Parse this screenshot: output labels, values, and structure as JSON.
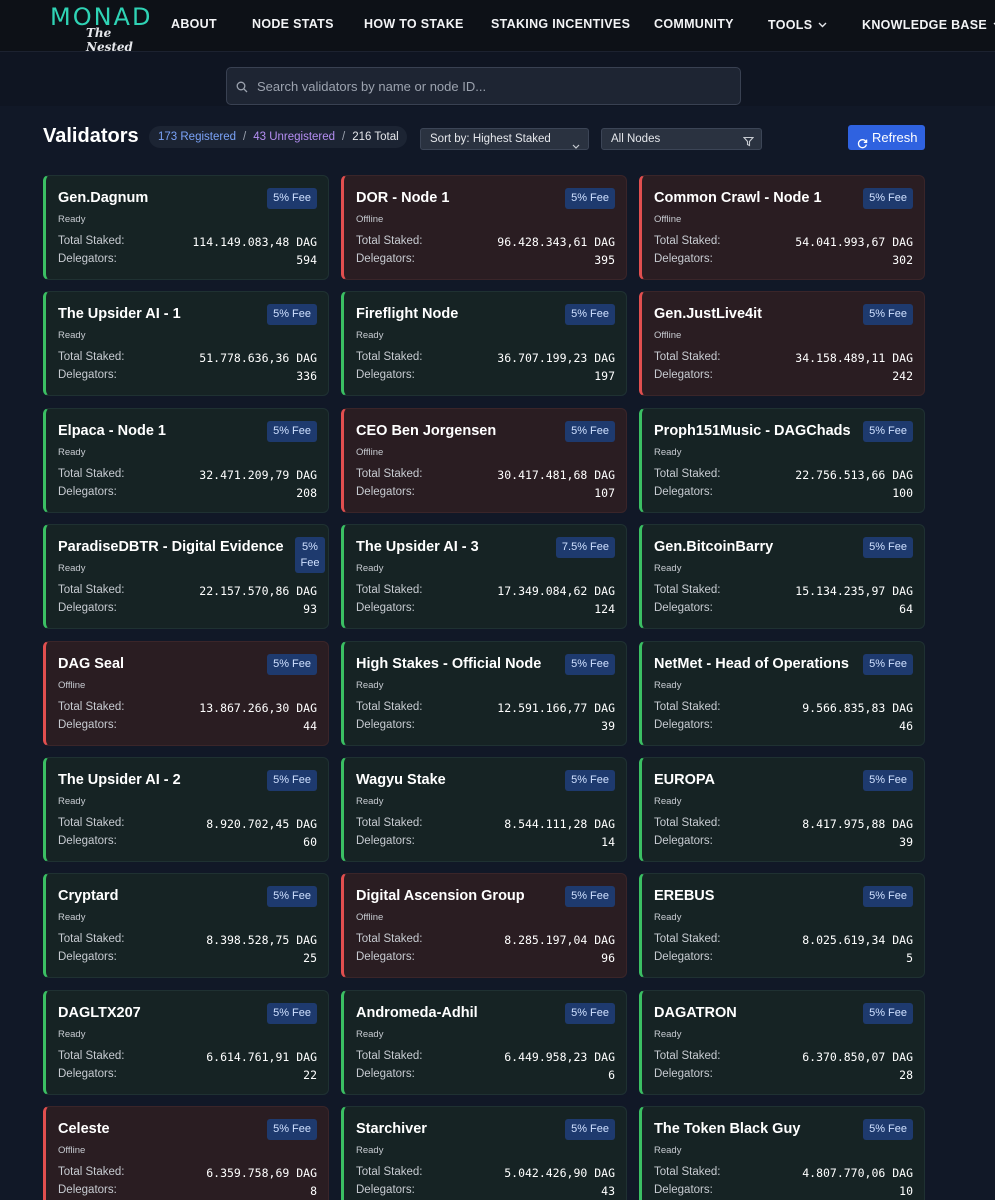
{
  "nav": {
    "logo_main": "MONAD",
    "logo_sub": "The Nested",
    "items": [
      {
        "label": "ABOUT"
      },
      {
        "label": "NODE STATS"
      },
      {
        "label": "HOW TO STAKE"
      },
      {
        "label": "STAKING INCENTIVES"
      },
      {
        "label": "COMMUNITY"
      },
      {
        "label": "TOOLS"
      },
      {
        "label": "KNOWLEDGE BASE"
      }
    ]
  },
  "search": {
    "placeholder": "Search validators by name or node ID...",
    "value": ""
  },
  "header": {
    "title": "Validators",
    "registered": "173 Registered",
    "unregistered": "43 Unregistered",
    "total": "216 Total",
    "separator": "/",
    "sort_label": "Sort by: Highest Staked",
    "filter_label": "All Nodes",
    "refresh_label": "Refresh"
  },
  "labels": {
    "staked": "Total Staked:",
    "delegators": "Delegators:"
  },
  "colors": {
    "ready": "#3bbf63",
    "offline": "#e14f4f",
    "accent": "#2f62e0",
    "logo": "#2fd3b5"
  },
  "validators": [
    {
      "name": "Gen.Dagnum",
      "status": "Ready",
      "fee": "5% Fee",
      "staked": "114.149.083,48 DAG",
      "delegators": "594"
    },
    {
      "name": "DOR - Node 1",
      "status": "Offline",
      "fee": "5% Fee",
      "staked": "96.428.343,61 DAG",
      "delegators": "395"
    },
    {
      "name": "Common Crawl - Node 1",
      "status": "Offline",
      "fee": "5% Fee",
      "staked": "54.041.993,67 DAG",
      "delegators": "302"
    },
    {
      "name": "The Upsider AI - 1",
      "status": "Ready",
      "fee": "5% Fee",
      "staked": "51.778.636,36 DAG",
      "delegators": "336"
    },
    {
      "name": "Fireflight Node",
      "status": "Ready",
      "fee": "5% Fee",
      "staked": "36.707.199,23 DAG",
      "delegators": "197"
    },
    {
      "name": "Gen.JustLive4it",
      "status": "Offline",
      "fee": "5% Fee",
      "staked": "34.158.489,11 DAG",
      "delegators": "242"
    },
    {
      "name": "Elpaca - Node 1",
      "status": "Ready",
      "fee": "5% Fee",
      "staked": "32.471.209,79 DAG",
      "delegators": "208"
    },
    {
      "name": "CEO Ben Jorgensen",
      "status": "Offline",
      "fee": "5% Fee",
      "staked": "30.417.481,68 DAG",
      "delegators": "107"
    },
    {
      "name": "Proph151Music - DAGChads",
      "status": "Ready",
      "fee": "5% Fee",
      "staked": "22.756.513,66 DAG",
      "delegators": "100"
    },
    {
      "name": "ParadiseDBTR - Digital Evidence",
      "status": "Ready",
      "fee": "5% Fee",
      "staked": "22.157.570,86 DAG",
      "delegators": "93"
    },
    {
      "name": "The Upsider AI - 3",
      "status": "Ready",
      "fee": "7.5% Fee",
      "staked": "17.349.084,62 DAG",
      "delegators": "124"
    },
    {
      "name": "Gen.BitcoinBarry",
      "status": "Ready",
      "fee": "5% Fee",
      "staked": "15.134.235,97 DAG",
      "delegators": "64"
    },
    {
      "name": "DAG Seal",
      "status": "Offline",
      "fee": "5% Fee",
      "staked": "13.867.266,30 DAG",
      "delegators": "44"
    },
    {
      "name": "High Stakes - Official Node",
      "status": "Ready",
      "fee": "5% Fee",
      "staked": "12.591.166,77 DAG",
      "delegators": "39"
    },
    {
      "name": "NetMet - Head of Operations",
      "status": "Ready",
      "fee": "5% Fee",
      "staked": "9.566.835,83 DAG",
      "delegators": "46"
    },
    {
      "name": "The Upsider AI - 2",
      "status": "Ready",
      "fee": "5% Fee",
      "staked": "8.920.702,45 DAG",
      "delegators": "60"
    },
    {
      "name": "Wagyu Stake",
      "status": "Ready",
      "fee": "5% Fee",
      "staked": "8.544.111,28 DAG",
      "delegators": "14"
    },
    {
      "name": "EUROPA",
      "status": "Ready",
      "fee": "5% Fee",
      "staked": "8.417.975,88 DAG",
      "delegators": "39"
    },
    {
      "name": "Cryptard",
      "status": "Ready",
      "fee": "5% Fee",
      "staked": "8.398.528,75 DAG",
      "delegators": "25"
    },
    {
      "name": "Digital Ascension Group",
      "status": "Offline",
      "fee": "5% Fee",
      "staked": "8.285.197,04 DAG",
      "delegators": "96"
    },
    {
      "name": "EREBUS",
      "status": "Ready",
      "fee": "5% Fee",
      "staked": "8.025.619,34 DAG",
      "delegators": "5"
    },
    {
      "name": "DAGLTX207",
      "status": "Ready",
      "fee": "5% Fee",
      "staked": "6.614.761,91 DAG",
      "delegators": "22"
    },
    {
      "name": "Andromeda-Adhil",
      "status": "Ready",
      "fee": "5% Fee",
      "staked": "6.449.958,23 DAG",
      "delegators": "6"
    },
    {
      "name": "DAGATRON",
      "status": "Ready",
      "fee": "5% Fee",
      "staked": "6.370.850,07 DAG",
      "delegators": "28"
    },
    {
      "name": "Celeste",
      "status": "Offline",
      "fee": "5% Fee",
      "staked": "6.359.758,69 DAG",
      "delegators": "8"
    },
    {
      "name": "Starchiver",
      "status": "Ready",
      "fee": "5% Fee",
      "staked": "5.042.426,90 DAG",
      "delegators": "43"
    },
    {
      "name": "The Token Black Guy",
      "status": "Ready",
      "fee": "5% Fee",
      "staked": "4.807.770,06 DAG",
      "delegators": "10"
    }
  ]
}
